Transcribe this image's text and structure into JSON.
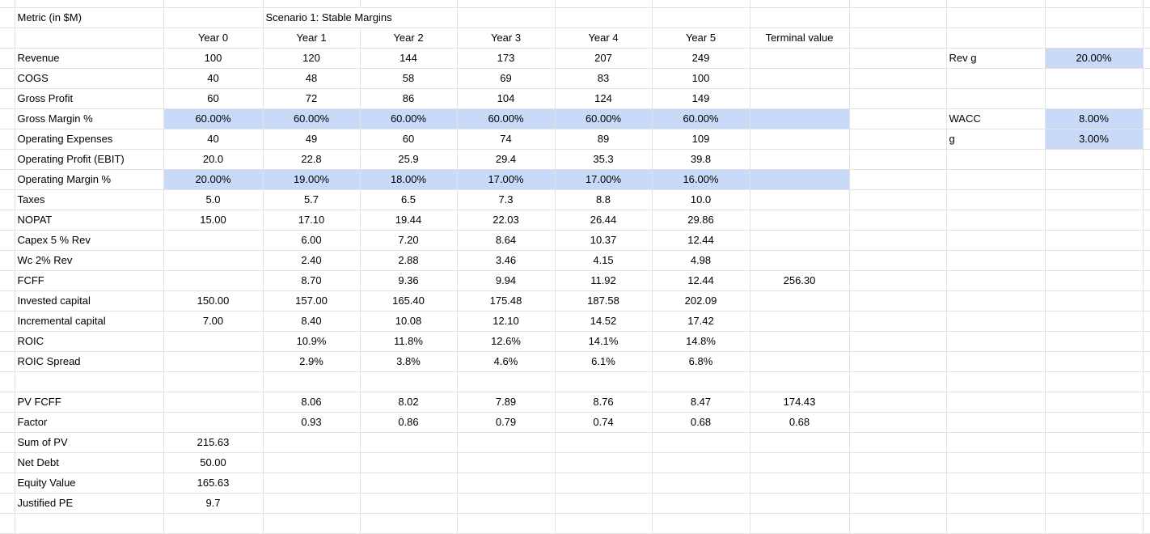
{
  "colors": {
    "highlight": "#c9daf8",
    "gridline": "#e2e2e2",
    "text": "#000000",
    "background": "#ffffff"
  },
  "header": {
    "metric_label": "Metric (in $M)",
    "scenario_label": "Scenario 1: Stable Margins",
    "year_labels": [
      "Year 0",
      "Year 1",
      "Year 2",
      "Year 3",
      "Year 4",
      "Year 5"
    ],
    "terminal_label": "Terminal value"
  },
  "rows": [
    {
      "label": "Revenue",
      "values": [
        "100",
        "120",
        "144",
        "173",
        "207",
        "249"
      ],
      "terminal": "",
      "highlight": false,
      "side": {
        "label": "Rev g",
        "value": "20.00%",
        "value_highlight": true
      }
    },
    {
      "label": "COGS",
      "values": [
        "40",
        "48",
        "58",
        "69",
        "83",
        "100"
      ],
      "terminal": "",
      "highlight": false,
      "side": null
    },
    {
      "label": "Gross Profit",
      "values": [
        "60",
        "72",
        "86",
        "104",
        "124",
        "149"
      ],
      "terminal": "",
      "highlight": false,
      "side": null
    },
    {
      "label": "Gross Margin %",
      "values": [
        "60.00%",
        "60.00%",
        "60.00%",
        "60.00%",
        "60.00%",
        "60.00%"
      ],
      "terminal": "",
      "highlight": true,
      "side": {
        "label": "WACC",
        "value": "8.00%",
        "value_highlight": true
      }
    },
    {
      "label": "Operating Expenses",
      "values": [
        "40",
        "49",
        "60",
        "74",
        "89",
        "109"
      ],
      "terminal": "",
      "highlight": false,
      "side": {
        "label": "g",
        "value": "3.00%",
        "value_highlight": true
      }
    },
    {
      "label": "Operating Profit (EBIT)",
      "values": [
        "20.0",
        "22.8",
        "25.9",
        "29.4",
        "35.3",
        "39.8"
      ],
      "terminal": "",
      "highlight": false,
      "side": null
    },
    {
      "label": "Operating Margin %",
      "values": [
        "20.00%",
        "19.00%",
        "18.00%",
        "17.00%",
        "17.00%",
        "16.00%"
      ],
      "terminal": "",
      "highlight": true,
      "side": null
    },
    {
      "label": "Taxes",
      "values": [
        "5.0",
        "5.7",
        "6.5",
        "7.3",
        "8.8",
        "10.0"
      ],
      "terminal": "",
      "highlight": false,
      "side": null
    },
    {
      "label": "NOPAT",
      "values": [
        "15.00",
        "17.10",
        "19.44",
        "22.03",
        "26.44",
        "29.86"
      ],
      "terminal": "",
      "highlight": false,
      "side": null
    },
    {
      "label": "Capex 5 % Rev",
      "values": [
        "",
        "6.00",
        "7.20",
        "8.64",
        "10.37",
        "12.44"
      ],
      "terminal": "",
      "highlight": false,
      "side": null
    },
    {
      "label": "Wc 2% Rev",
      "values": [
        "",
        "2.40",
        "2.88",
        "3.46",
        "4.15",
        "4.98"
      ],
      "terminal": "",
      "highlight": false,
      "side": null
    },
    {
      "label": "FCFF",
      "values": [
        "",
        "8.70",
        "9.36",
        "9.94",
        "11.92",
        "12.44"
      ],
      "terminal": "256.30",
      "highlight": false,
      "side": null
    },
    {
      "label": "Invested capital",
      "values": [
        "150.00",
        "157.00",
        "165.40",
        "175.48",
        "187.58",
        "202.09"
      ],
      "terminal": "",
      "highlight": false,
      "side": null
    },
    {
      "label": "Incremental capital",
      "values": [
        "7.00",
        "8.40",
        "10.08",
        "12.10",
        "14.52",
        "17.42"
      ],
      "terminal": "",
      "highlight": false,
      "side": null
    },
    {
      "label": "ROIC",
      "values": [
        "",
        "10.9%",
        "11.8%",
        "12.6%",
        "14.1%",
        "14.8%"
      ],
      "terminal": "",
      "highlight": false,
      "side": null
    },
    {
      "label": "ROIC Spread",
      "values": [
        "",
        "2.9%",
        "3.8%",
        "4.6%",
        "6.1%",
        "6.8%"
      ],
      "terminal": "",
      "highlight": false,
      "side": null
    },
    {
      "label": "",
      "values": [
        "",
        "",
        "",
        "",
        "",
        ""
      ],
      "terminal": "",
      "highlight": false,
      "side": null,
      "spacer": true
    },
    {
      "label": "PV FCFF",
      "values": [
        "",
        "8.06",
        "8.02",
        "7.89",
        "8.76",
        "8.47"
      ],
      "terminal": "174.43",
      "highlight": false,
      "side": null
    },
    {
      "label": "Factor",
      "values": [
        "",
        "0.93",
        "0.86",
        "0.79",
        "0.74",
        "0.68"
      ],
      "terminal": "0.68",
      "highlight": false,
      "side": null
    },
    {
      "label": "Sum of PV",
      "values": [
        "215.63",
        "",
        "",
        "",
        "",
        ""
      ],
      "terminal": "",
      "highlight": false,
      "side": null
    },
    {
      "label": "Net Debt",
      "values": [
        "50.00",
        "",
        "",
        "",
        "",
        ""
      ],
      "terminal": "",
      "highlight": false,
      "side": null
    },
    {
      "label": "Equity Value",
      "values": [
        "165.63",
        "",
        "",
        "",
        "",
        ""
      ],
      "terminal": "",
      "highlight": false,
      "side": null
    },
    {
      "label": "Justified PE",
      "values": [
        "9.7",
        "",
        "",
        "",
        "",
        ""
      ],
      "terminal": "",
      "highlight": false,
      "side": null
    },
    {
      "label": "",
      "values": [
        "",
        "",
        "",
        "",
        "",
        ""
      ],
      "terminal": "",
      "highlight": false,
      "side": null,
      "spacer": true
    }
  ]
}
